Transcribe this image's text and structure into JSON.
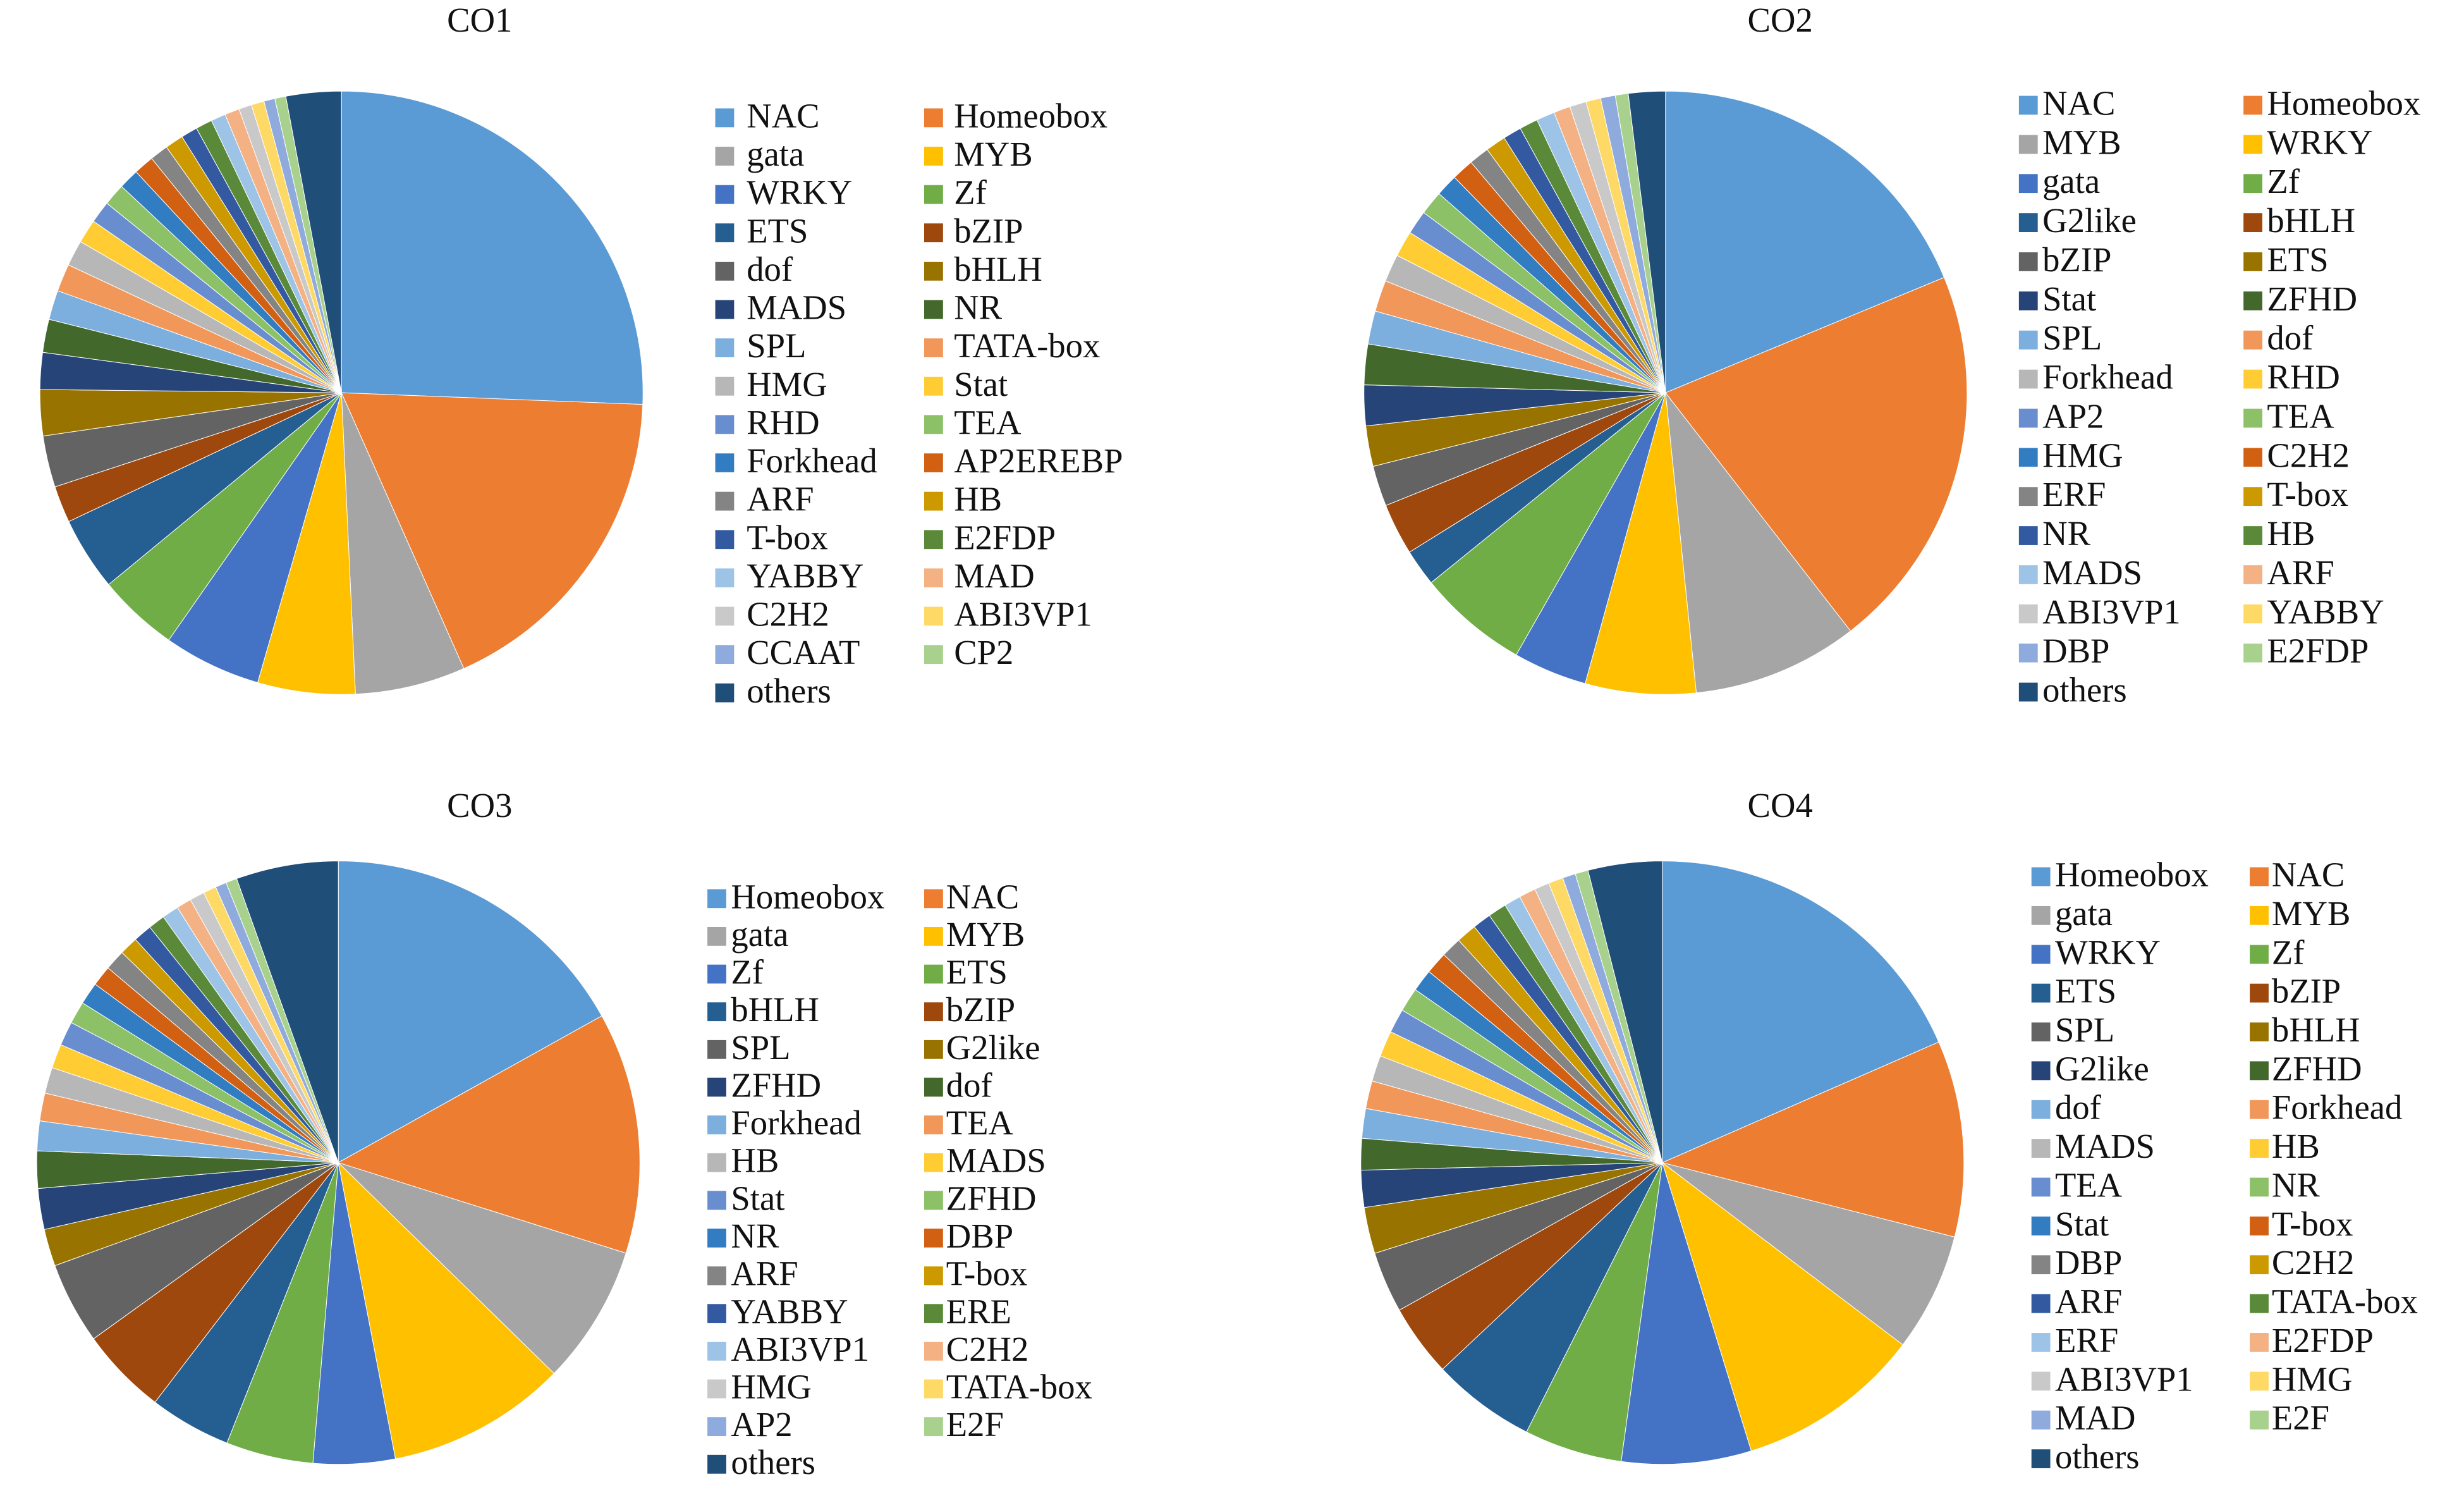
{
  "chart_data": [
    {
      "type": "pie",
      "title": "CO1",
      "categories": [
        "NAC",
        "Homeobox",
        "gata",
        "MYB",
        "WRKY",
        "Zf",
        "ETS",
        "bZIP",
        "dof",
        "bHLH",
        "MADS",
        "NR",
        "SPL",
        "TATA-box",
        "HMG",
        "Stat",
        "RHD",
        "TEA",
        "Forkhead",
        "AP2EREBP",
        "ARF",
        "HB",
        "T-box",
        "E2FDP",
        "YABBY",
        "MAD",
        "C2H2",
        "ABI3VP1",
        "CCAAT",
        "CP2",
        "others"
      ],
      "values": [
        26,
        18,
        6,
        5.3,
        5.3,
        4.4,
        4,
        2,
        2.8,
        2.5,
        2,
        1.8,
        1.6,
        1.5,
        1.4,
        1.3,
        1.2,
        1.2,
        1.1,
        1.1,
        1.0,
        1.0,
        0.9,
        0.9,
        0.8,
        0.8,
        0.7,
        0.7,
        0.6,
        0.6,
        3
      ],
      "colors": [
        "#5B9BD5",
        "#ED7D31",
        "#A5A5A5",
        "#FFC000",
        "#4472C4",
        "#70AD47",
        "#255E91",
        "#9E480E",
        "#636363",
        "#997300",
        "#264478",
        "#43682B",
        "#7CAFDD",
        "#F1975A",
        "#B7B7B7",
        "#FFCD33",
        "#698ED0",
        "#8CC168",
        "#327DC2",
        "#D26012",
        "#848484",
        "#CC9A00",
        "#335AA1",
        "#5A8A39",
        "#9DC3E6",
        "#F4B183",
        "#C9C9C9",
        "#FFD966",
        "#8FAADC",
        "#A9D18E",
        "#1F4E79"
      ]
    },
    {
      "type": "pie",
      "title": "CO2",
      "categories": [
        "NAC",
        "Homeobox",
        "MYB",
        "WRKY",
        "gata",
        "Zf",
        "G2like",
        "bHLH",
        "bZIP",
        "ETS",
        "Stat",
        "ZFHD",
        "SPL",
        "dof",
        "Forkhead",
        "RHD",
        "AP2",
        "TEA",
        "HMG",
        "C2H2",
        "ERF",
        "T-box",
        "NR",
        "HB",
        "MADS",
        "ARF",
        "ABI3VP1",
        "YABBY",
        "DBP",
        "E2FDP",
        "others"
      ],
      "values": [
        19,
        21,
        9,
        6,
        4,
        6,
        2,
        2.8,
        2.2,
        2.2,
        2.2,
        2.2,
        1.8,
        1.7,
        1.5,
        1.4,
        1.3,
        1.3,
        1.2,
        1.2,
        1.1,
        1.1,
        1.0,
        1.0,
        1.0,
        0.9,
        0.9,
        0.8,
        0.8,
        0.7,
        2
      ],
      "colors": [
        "#5B9BD5",
        "#ED7D31",
        "#A5A5A5",
        "#FFC000",
        "#4472C4",
        "#70AD47",
        "#255E91",
        "#9E480E",
        "#636363",
        "#997300",
        "#264478",
        "#43682B",
        "#7CAFDD",
        "#F1975A",
        "#B7B7B7",
        "#FFCD33",
        "#698ED0",
        "#8CC168",
        "#327DC2",
        "#D26012",
        "#848484",
        "#CC9A00",
        "#335AA1",
        "#5A8A39",
        "#9DC3E6",
        "#F4B183",
        "#C9C9C9",
        "#FFD966",
        "#8FAADC",
        "#A9D18E",
        "#1F4E79"
      ]
    },
    {
      "type": "pie",
      "title": "CO3",
      "categories": [
        "Homeobox",
        "NAC",
        "gata",
        "MYB",
        "Zf",
        "ETS",
        "bHLH",
        "bZIP",
        "SPL",
        "G2like",
        "ZFHD",
        "dof",
        "Forkhead",
        "TEA",
        "HB",
        "MADS",
        "Stat",
        "ZFHD",
        "NR",
        "DBP",
        "ARF",
        "T-box",
        "YABBY",
        "ERE",
        "ABI3VP1",
        "C2H2",
        "HMG",
        "TATA-box",
        "AP2",
        "E2F",
        "others"
      ],
      "values": [
        17,
        13,
        7.5,
        9.7,
        4.4,
        4.7,
        4.4,
        4.7,
        4.4,
        2,
        2.2,
        2,
        1.6,
        1.5,
        1.4,
        1.3,
        1.3,
        1.2,
        1.2,
        1.1,
        1.1,
        1.0,
        1.0,
        0.9,
        0.9,
        0.8,
        0.8,
        0.7,
        0.6,
        0.6,
        5.5
      ],
      "colors": [
        "#5B9BD5",
        "#ED7D31",
        "#A5A5A5",
        "#FFC000",
        "#4472C4",
        "#70AD47",
        "#255E91",
        "#9E480E",
        "#636363",
        "#997300",
        "#264478",
        "#43682B",
        "#7CAFDD",
        "#F1975A",
        "#B7B7B7",
        "#FFCD33",
        "#698ED0",
        "#8CC168",
        "#327DC2",
        "#D26012",
        "#848484",
        "#CC9A00",
        "#335AA1",
        "#5A8A39",
        "#9DC3E6",
        "#F4B183",
        "#C9C9C9",
        "#FFD966",
        "#8FAADC",
        "#A9D18E",
        "#1F4E79"
      ]
    },
    {
      "type": "pie",
      "title": "CO4",
      "categories": [
        "Homeobox",
        "NAC",
        "gata",
        "MYB",
        "WRKY",
        "Zf",
        "ETS",
        "bZIP",
        "SPL",
        "bHLH",
        "G2like",
        "ZFHD",
        "dof",
        "Forkhead",
        "MADS",
        "HB",
        "TEA",
        "NR",
        "Stat",
        "T-box",
        "DBP",
        "C2H2",
        "ARF",
        "TATA-box",
        "ERF",
        "E2FDP",
        "ABI3VP1",
        "HMG",
        "MAD",
        "E2F",
        "others"
      ],
      "values": [
        18.6,
        10.6,
        6.4,
        10,
        7,
        5.3,
        5.6,
        3.9,
        3.3,
        2.5,
        2,
        1.7,
        1.6,
        1.5,
        1.4,
        1.4,
        1.3,
        1.3,
        1.2,
        1.2,
        1.1,
        1.1,
        1.0,
        1.0,
        0.9,
        0.9,
        0.8,
        0.8,
        0.7,
        0.7,
        4
      ],
      "colors": [
        "#5B9BD5",
        "#ED7D31",
        "#A5A5A5",
        "#FFC000",
        "#4472C4",
        "#70AD47",
        "#255E91",
        "#9E480E",
        "#636363",
        "#997300",
        "#264478",
        "#43682B",
        "#7CAFDD",
        "#F1975A",
        "#B7B7B7",
        "#FFCD33",
        "#698ED0",
        "#8CC168",
        "#327DC2",
        "#D26012",
        "#848484",
        "#CC9A00",
        "#335AA1",
        "#5A8A39",
        "#9DC3E6",
        "#F4B183",
        "#C9C9C9",
        "#FFD966",
        "#8FAADC",
        "#A9D18E",
        "#1F4E79"
      ]
    }
  ]
}
